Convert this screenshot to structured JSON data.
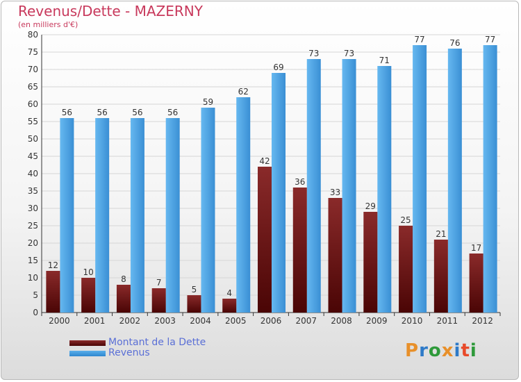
{
  "header": {
    "title": "Revenus/Dette - MAZERNY",
    "subtitle": "(en milliers d'€)"
  },
  "colors": {
    "title": "#c8395c",
    "debt_top": "#8a2a2a",
    "debt_bottom": "#4a0505",
    "revenue_top": "#5aafea",
    "revenue_bottom": "#2e86cf",
    "legend_text": "#5a6fd6"
  },
  "chart_data": {
    "type": "bar",
    "categories": [
      "2000",
      "2001",
      "2002",
      "2003",
      "2004",
      "2005",
      "2006",
      "2007",
      "2008",
      "2009",
      "2010",
      "2011",
      "2012"
    ],
    "series": [
      {
        "name": "Montant de la Dette",
        "values": [
          12,
          10,
          8,
          7,
          5,
          4,
          42,
          36,
          33,
          29,
          25,
          21,
          17
        ]
      },
      {
        "name": "Revenus",
        "values": [
          56,
          56,
          56,
          56,
          59,
          62,
          69,
          73,
          73,
          71,
          77,
          76,
          77
        ]
      }
    ],
    "ylim": [
      0,
      80
    ],
    "ytick_step": 5,
    "grid": true,
    "legend_position": "bottom-left"
  },
  "legend": {
    "debt_label": "Montant de la Dette",
    "revenue_label": "Revenus"
  },
  "logo": {
    "text": "Proxiti",
    "letter_colors": [
      "#e8902a",
      "#2e7ac8",
      "#2e9a3a",
      "#e8902a",
      "#2e7ac8",
      "#e84a2a",
      "#2e9a3a"
    ]
  }
}
